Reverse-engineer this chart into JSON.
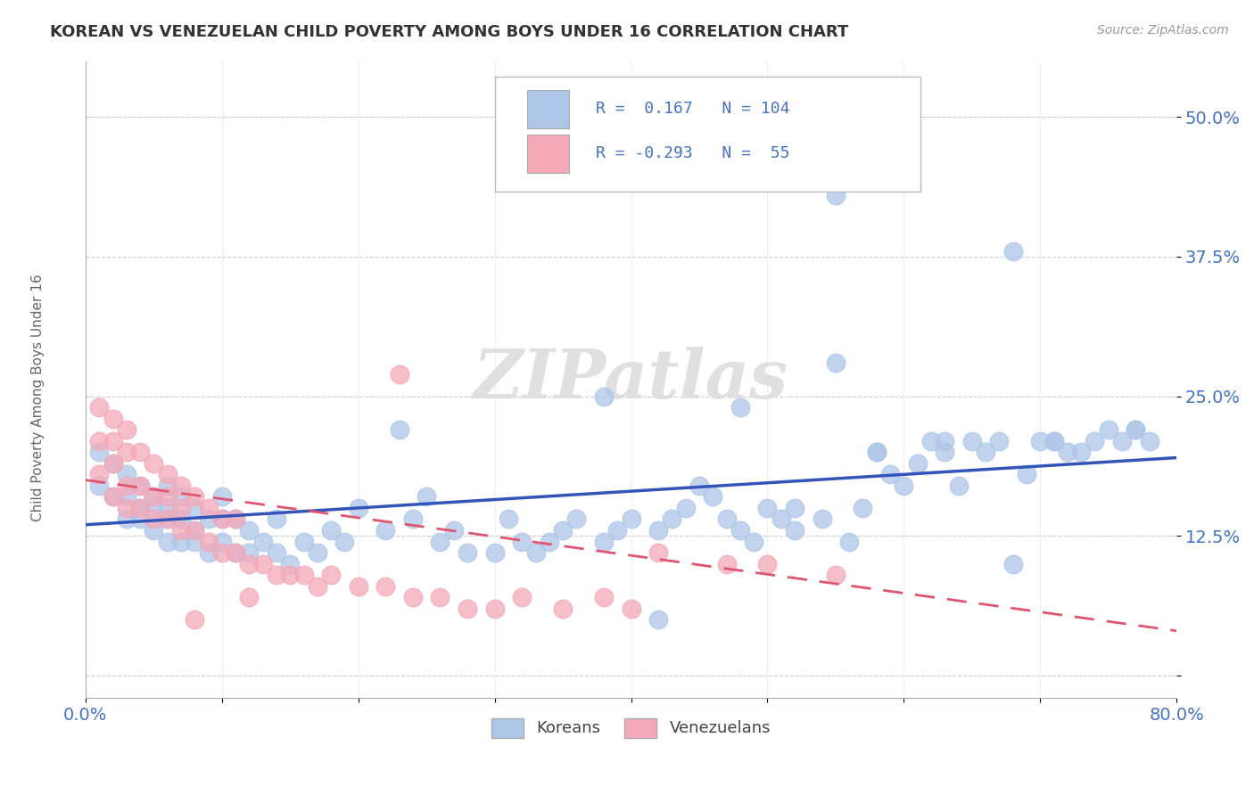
{
  "title": "KOREAN VS VENEZUELAN CHILD POVERTY AMONG BOYS UNDER 16 CORRELATION CHART",
  "source": "Source: ZipAtlas.com",
  "ylabel": "Child Poverty Among Boys Under 16",
  "xlim": [
    0.0,
    0.8
  ],
  "ylim": [
    -0.02,
    0.55
  ],
  "yticks": [
    0.0,
    0.125,
    0.25,
    0.375,
    0.5
  ],
  "ytick_labels": [
    "",
    "12.5%",
    "25.0%",
    "37.5%",
    "50.0%"
  ],
  "xticks": [
    0.0,
    0.1,
    0.2,
    0.3,
    0.4,
    0.5,
    0.6,
    0.7,
    0.8
  ],
  "xtick_labels": [
    "0.0%",
    "",
    "",
    "",
    "",
    "",
    "",
    "",
    "80.0%"
  ],
  "korean_color": "#aec6e8",
  "venezuelan_color": "#f4a8b8",
  "korean_line_color": "#3355bb",
  "venezuelan_line_color": "#e05570",
  "R_korean": 0.167,
  "N_korean": 104,
  "R_venezuelan": -0.293,
  "N_venezuelan": 55,
  "watermark": "ZIPatlas",
  "background_color": "#ffffff",
  "grid_color": "#cccccc",
  "title_color": "#333333",
  "axis_label_color": "#666666",
  "tick_color": "#4472c4",
  "korean_scatter_x": [
    0.01,
    0.01,
    0.02,
    0.02,
    0.03,
    0.03,
    0.03,
    0.04,
    0.04,
    0.04,
    0.05,
    0.05,
    0.05,
    0.06,
    0.06,
    0.06,
    0.06,
    0.07,
    0.07,
    0.07,
    0.08,
    0.08,
    0.08,
    0.09,
    0.09,
    0.1,
    0.1,
    0.1,
    0.11,
    0.11,
    0.12,
    0.12,
    0.13,
    0.14,
    0.14,
    0.15,
    0.16,
    0.17,
    0.18,
    0.19,
    0.2,
    0.22,
    0.23,
    0.24,
    0.25,
    0.26,
    0.27,
    0.28,
    0.3,
    0.31,
    0.32,
    0.33,
    0.34,
    0.35,
    0.36,
    0.38,
    0.39,
    0.4,
    0.42,
    0.43,
    0.44,
    0.45,
    0.46,
    0.47,
    0.48,
    0.49,
    0.5,
    0.51,
    0.52,
    0.54,
    0.55,
    0.56,
    0.57,
    0.58,
    0.59,
    0.6,
    0.61,
    0.62,
    0.63,
    0.64,
    0.65,
    0.66,
    0.67,
    0.68,
    0.69,
    0.7,
    0.71,
    0.72,
    0.73,
    0.74,
    0.75,
    0.76,
    0.77,
    0.78,
    0.55,
    0.42,
    0.68,
    0.77,
    0.63,
    0.58,
    0.71,
    0.48,
    0.38,
    0.52
  ],
  "korean_scatter_y": [
    0.2,
    0.17,
    0.16,
    0.19,
    0.14,
    0.16,
    0.18,
    0.14,
    0.15,
    0.17,
    0.13,
    0.15,
    0.16,
    0.12,
    0.14,
    0.15,
    0.17,
    0.12,
    0.14,
    0.16,
    0.12,
    0.13,
    0.15,
    0.11,
    0.14,
    0.12,
    0.14,
    0.16,
    0.11,
    0.14,
    0.11,
    0.13,
    0.12,
    0.11,
    0.14,
    0.1,
    0.12,
    0.11,
    0.13,
    0.12,
    0.15,
    0.13,
    0.22,
    0.14,
    0.16,
    0.12,
    0.13,
    0.11,
    0.11,
    0.14,
    0.12,
    0.11,
    0.12,
    0.13,
    0.14,
    0.12,
    0.13,
    0.14,
    0.13,
    0.14,
    0.15,
    0.17,
    0.16,
    0.14,
    0.13,
    0.12,
    0.15,
    0.14,
    0.13,
    0.14,
    0.43,
    0.12,
    0.15,
    0.2,
    0.18,
    0.17,
    0.19,
    0.21,
    0.2,
    0.17,
    0.21,
    0.2,
    0.21,
    0.38,
    0.18,
    0.21,
    0.21,
    0.2,
    0.2,
    0.21,
    0.22,
    0.21,
    0.22,
    0.21,
    0.28,
    0.05,
    0.1,
    0.22,
    0.21,
    0.2,
    0.21,
    0.24,
    0.25,
    0.15
  ],
  "venezuelan_scatter_x": [
    0.01,
    0.01,
    0.01,
    0.02,
    0.02,
    0.02,
    0.02,
    0.03,
    0.03,
    0.03,
    0.03,
    0.04,
    0.04,
    0.04,
    0.05,
    0.05,
    0.05,
    0.06,
    0.06,
    0.06,
    0.07,
    0.07,
    0.07,
    0.08,
    0.08,
    0.09,
    0.09,
    0.1,
    0.1,
    0.11,
    0.11,
    0.12,
    0.13,
    0.14,
    0.15,
    0.16,
    0.17,
    0.18,
    0.2,
    0.22,
    0.23,
    0.24,
    0.26,
    0.28,
    0.3,
    0.32,
    0.35,
    0.38,
    0.4,
    0.42,
    0.47,
    0.5,
    0.55,
    0.08,
    0.12
  ],
  "venezuelan_scatter_y": [
    0.18,
    0.21,
    0.24,
    0.16,
    0.19,
    0.21,
    0.23,
    0.15,
    0.17,
    0.2,
    0.22,
    0.15,
    0.17,
    0.2,
    0.14,
    0.16,
    0.19,
    0.14,
    0.16,
    0.18,
    0.13,
    0.15,
    0.17,
    0.13,
    0.16,
    0.12,
    0.15,
    0.11,
    0.14,
    0.11,
    0.14,
    0.1,
    0.1,
    0.09,
    0.09,
    0.09,
    0.08,
    0.09,
    0.08,
    0.08,
    0.27,
    0.07,
    0.07,
    0.06,
    0.06,
    0.07,
    0.06,
    0.07,
    0.06,
    0.11,
    0.1,
    0.1,
    0.09,
    0.05,
    0.07
  ]
}
